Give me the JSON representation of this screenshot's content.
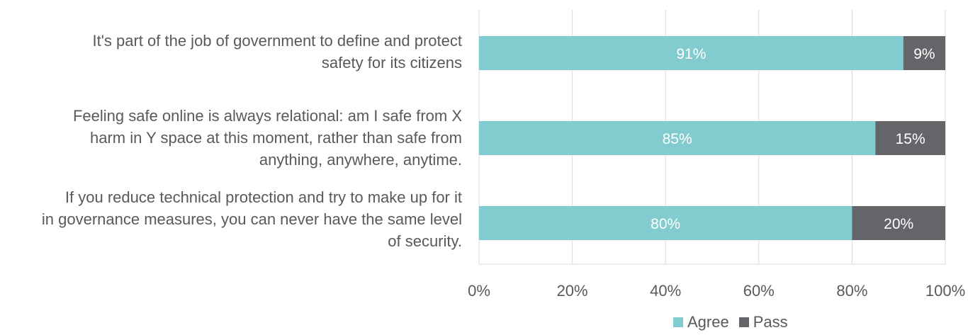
{
  "chart_data": {
    "type": "bar",
    "orientation": "horizontal",
    "stacked": true,
    "categories": [
      "It's part of the job of government to define and protect safety for its citizens",
      "Feeling safe online is always relational: am I safe from X harm in Y space at this moment, rather than safe from anything, anywhere, anytime.",
      "If you reduce technical protection and try to make up for it in governance measures, you can never have the same level of security."
    ],
    "category_lines": [
      [
        "It's part of the job of government to define and protect",
        "safety for its citizens"
      ],
      [
        "Feeling safe online is always relational: am I safe from X",
        "harm in Y space at this moment, rather than safe from",
        "anything, anywhere, anytime."
      ],
      [
        "If you reduce technical protection and try to make up for it",
        "in governance measures, you can never have the same level",
        "of security."
      ]
    ],
    "series": [
      {
        "name": "Agree",
        "values": [
          91,
          85,
          80
        ],
        "labels": [
          "91%",
          "85%",
          "80%"
        ],
        "color": "#82CBCE"
      },
      {
        "name": "Pass",
        "values": [
          9,
          15,
          20
        ],
        "labels": [
          "9%",
          "15%",
          "20%"
        ],
        "color": "#636569"
      }
    ],
    "xlim": [
      0,
      100
    ],
    "x_ticks": [
      0,
      20,
      40,
      60,
      80,
      100
    ],
    "x_tick_labels": [
      "0%",
      "20%",
      "40%",
      "60%",
      "80%",
      "100%"
    ],
    "grid": true,
    "legend_position": "bottom-right"
  },
  "colors": {
    "grid": "#D9D9D9",
    "text": "#595959",
    "data_label": "#FFFFFF"
  }
}
